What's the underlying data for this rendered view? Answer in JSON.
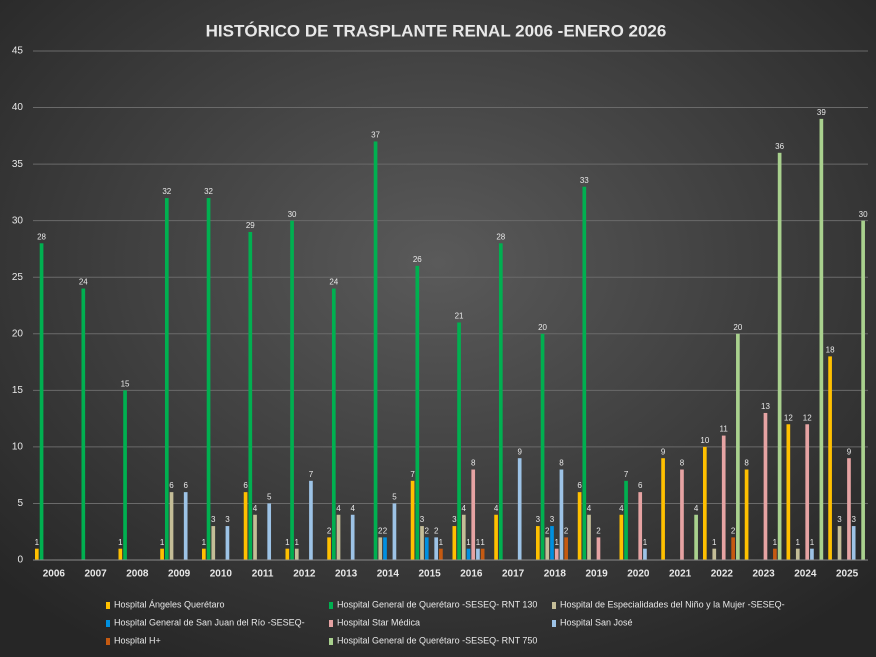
{
  "chart_data": {
    "type": "bar",
    "title": "HISTÓRICO DE TRASPLANTE RENAL 2006 -ENERO 2026",
    "categories": [
      "2006",
      "2007",
      "2008",
      "2009",
      "2010",
      "2011",
      "2012",
      "2013",
      "2014",
      "2015",
      "2016",
      "2017",
      "2018",
      "2019",
      "2020",
      "2021",
      "2022",
      "2023",
      "2024",
      "2025"
    ],
    "ylim": [
      0,
      45
    ],
    "yticks": [
      0,
      5,
      10,
      15,
      20,
      25,
      30,
      35,
      40,
      45
    ],
    "grid": true,
    "series": [
      {
        "name": "Hospital Ángeles Querétaro",
        "color": "#ffc000",
        "values": [
          1,
          null,
          1,
          1,
          1,
          6,
          1,
          2,
          null,
          7,
          3,
          4,
          3,
          6,
          4,
          9,
          10,
          8,
          12,
          18
        ]
      },
      {
        "name": "Hospital General de Querétaro -SESEQ- RNT 130",
        "color": "#00b050",
        "values": [
          28,
          24,
          15,
          32,
          32,
          29,
          30,
          24,
          37,
          26,
          21,
          28,
          20,
          33,
          7,
          null,
          null,
          null,
          null,
          null
        ]
      },
      {
        "name": "Hospital de Especialidades del Niño y la Mujer -SESEQ-",
        "color": "#c4bd97",
        "values": [
          null,
          null,
          null,
          6,
          3,
          4,
          1,
          4,
          2,
          3,
          4,
          null,
          2,
          4,
          null,
          null,
          1,
          null,
          1,
          3
        ]
      },
      {
        "name": "Hospital General de San Juan del Río -SESEQ-",
        "color": "#0090e0",
        "values": [
          null,
          null,
          null,
          null,
          null,
          null,
          null,
          null,
          2,
          2,
          1,
          null,
          3,
          null,
          null,
          null,
          null,
          null,
          null,
          null
        ]
      },
      {
        "name": "Hospital Star Médica",
        "color": "#e6a3a3",
        "values": [
          null,
          null,
          null,
          null,
          null,
          null,
          null,
          null,
          null,
          null,
          8,
          null,
          1,
          2,
          6,
          8,
          11,
          13,
          12,
          9
        ]
      },
      {
        "name": "Hospital San José",
        "color": "#9dc3e6",
        "values": [
          null,
          null,
          null,
          6,
          3,
          5,
          7,
          4,
          5,
          2,
          1,
          9,
          8,
          null,
          1,
          null,
          null,
          null,
          1,
          3
        ]
      },
      {
        "name": "Hospital H+",
        "color": "#c55a11",
        "values": [
          null,
          null,
          null,
          null,
          null,
          null,
          null,
          null,
          null,
          1,
          1,
          null,
          2,
          null,
          null,
          null,
          2,
          1,
          null,
          null
        ]
      },
      {
        "name": "Hospital General de Querétaro -SESEQ- RNT 750",
        "color": "#a9d18e",
        "values": [
          null,
          null,
          null,
          null,
          null,
          null,
          null,
          null,
          null,
          null,
          null,
          null,
          null,
          null,
          null,
          4,
          20,
          36,
          39,
          30
        ]
      }
    ]
  }
}
